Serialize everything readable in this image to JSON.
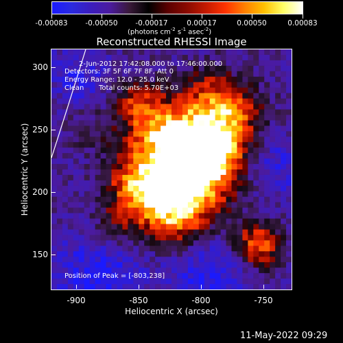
{
  "colorbar": {
    "ticks": [
      "-0.00083",
      "-0.00050",
      "-0.00017",
      "0.00017",
      "0.00050",
      "0.00083"
    ],
    "units": "(photons cm",
    "units_exp1": "-2",
    "units_mid": " s",
    "units_exp2": "-1",
    "units_end": " asec",
    "units_exp3": "-2",
    "units_close": ")",
    "colors": [
      "#1a1aff",
      "#2a2adf",
      "#3b1dbd",
      "#4b1b9f",
      "#3a1a3a",
      "#000000",
      "#5a0000",
      "#8a0a00",
      "#c41a00",
      "#ff3300",
      "#ff8000",
      "#ffc000",
      "#ffff66",
      "#ffffff"
    ]
  },
  "plot": {
    "title": "Reconstructed RHESSI Image",
    "time_line": "2-Jun-2012 17:42:08.000 to 17:46:00.000",
    "detectors_line": "Detectors: 3F 5F 6F 7F 8F, Att 0",
    "energy_line": "Energy Range: 12.0 - 25.0 keV",
    "clean_label": "Clean",
    "counts_label": "Total counts: 5.70E+03",
    "peak_label": "Position of Peak = [-803,238]",
    "x_ticks": [
      "-900",
      "-850",
      "-800",
      "-750"
    ],
    "y_ticks": [
      "150",
      "200",
      "250",
      "300"
    ],
    "xlabel": "Heliocentric X (arcsec)",
    "ylabel": "Heliocentric Y (arcsec)",
    "x_range": [
      -920,
      -728
    ],
    "y_range": [
      120,
      312
    ]
  },
  "footer": {
    "date": "11-May-2022 09:29"
  }
}
